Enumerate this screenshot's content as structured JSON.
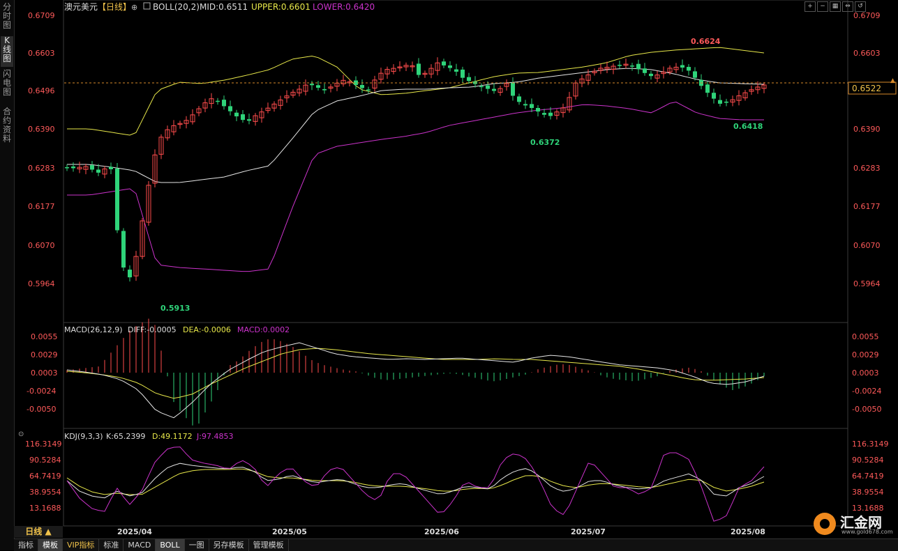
{
  "side_tabs": [
    {
      "label": "分时图",
      "active": false
    },
    {
      "label": "K线图",
      "active": true
    },
    {
      "label": "闪电图",
      "active": false
    },
    {
      "label": "合约资料",
      "active": false
    }
  ],
  "header": {
    "symbol": "澳元美元",
    "period_tag": "【日线】",
    "boll_label": "BOLL(20,2)",
    "mid": "MID:0.6511",
    "upper": "UPPER:0.6601",
    "lower": "LOWER:0.6420"
  },
  "price_axis": [
    "0.6709",
    "0.6603",
    "0.6496",
    "0.6390",
    "0.6283",
    "0.6177",
    "0.6070",
    "0.5964"
  ],
  "current_price": "0.6522",
  "annotations": {
    "high": "0.6624",
    "low": "0.5913",
    "mid_low": "0.6372",
    "recent_low": "0.6418"
  },
  "macd": {
    "label": "MACD(26,12,9)",
    "diff": "DIFF:-0.0005",
    "dea": "DEA:-0.0006",
    "macd": "MACD:0.0002",
    "axis": [
      "0.0055",
      "0.0029",
      "0.0003",
      "-0.0024",
      "-0.0050"
    ]
  },
  "kdj": {
    "label": "KDJ(9,3,3)",
    "k": "K:65.2399",
    "d": "D:49.1172",
    "j": "J:97.4853",
    "axis": [
      "116.3149",
      "90.5284",
      "64.7419",
      "38.9554",
      "13.1688"
    ]
  },
  "x_axis": [
    "2025/04",
    "2025/05",
    "2025/06",
    "2025/07",
    "2025/08"
  ],
  "period_button": "日线 ▲",
  "bottom_tabs": [
    {
      "label": "指标",
      "active": false
    },
    {
      "label": "模板",
      "active": true
    },
    {
      "label": "VIP指标",
      "vip": true
    },
    {
      "label": "标准"
    },
    {
      "label": "MACD"
    },
    {
      "label": "BOLL",
      "active": true
    },
    {
      "label": "一图"
    },
    {
      "label": "另存模板"
    },
    {
      "label": "管理模板"
    }
  ],
  "logo": {
    "name": "汇金网",
    "url": "www.gold678.com"
  },
  "colors": {
    "up": "#ff4d4d",
    "down": "#2fd47a",
    "upper": "#e8e84a",
    "mid": "#e6e6e6",
    "lower": "#cc33cc",
    "axis": "#ff5a5a",
    "dash": "#d98a2a"
  }
}
